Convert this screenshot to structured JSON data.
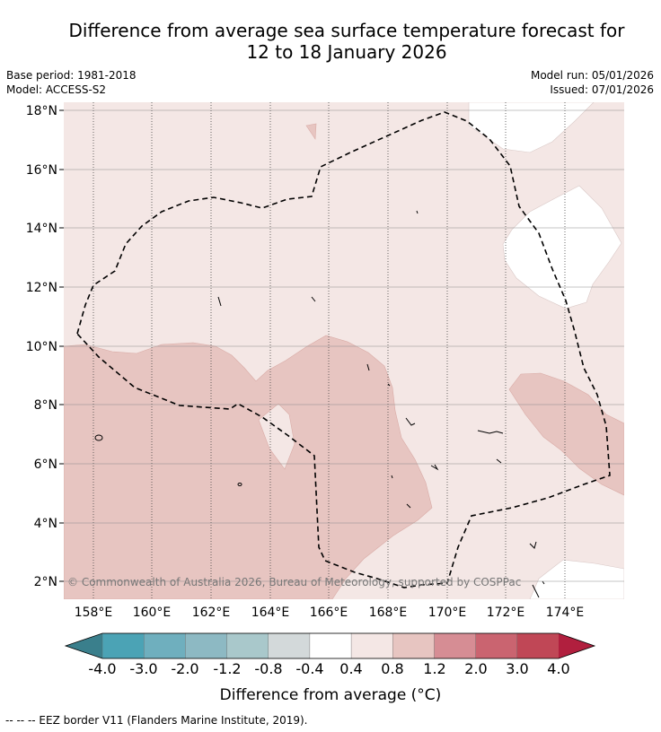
{
  "title": {
    "line1": "Difference from average sea surface temperature forecast for",
    "line2": "12 to 18 January 2026"
  },
  "meta": {
    "base_period": "Base period: 1981-2018",
    "model": "Model: ACCESS-S2",
    "model_run": "Model run: 05/01/2026",
    "issued": "Issued: 07/01/2026"
  },
  "map": {
    "lon_labels": [
      "158°E",
      "160°E",
      "162°E",
      "164°E",
      "166°E",
      "168°E",
      "170°E",
      "172°E",
      "174°E"
    ],
    "lat_labels": [
      "18°N",
      "16°N",
      "14°N",
      "12°N",
      "10°N",
      "8°N",
      "6°N",
      "4°N",
      "2°N"
    ],
    "copyright": "© Commonwealth of Australia 2026, Bureau of Meteorology, supported by COSPPac"
  },
  "colorbar": {
    "ticks": [
      "-4.0",
      "-3.0",
      "-2.0",
      "-1.2",
      "-0.8",
      "-0.4",
      "0.4",
      "0.8",
      "1.2",
      "2.0",
      "3.0",
      "4.0"
    ],
    "colors": [
      "#3a7f8c",
      "#4ba3b5",
      "#6fafbe",
      "#8db9c3",
      "#a9c8cb",
      "#d3d9da",
      "#ffffff",
      "#f4e7e5",
      "#e7c5c1",
      "#d68d94",
      "#ca6470",
      "#c04756",
      "#b11f3e"
    ],
    "label": "Difference from average (°C)"
  },
  "legend": {
    "eez": "-- -- -- EEZ border V11 (Flanders Marine Institute, 2019)."
  },
  "colors": {
    "pale": "#f4e7e5",
    "light_red": "#e7c5c1",
    "white": "#ffffff",
    "grid": "#444444"
  }
}
